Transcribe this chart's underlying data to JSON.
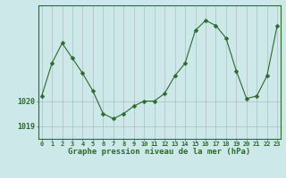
{
  "x": [
    0,
    1,
    2,
    3,
    4,
    5,
    6,
    7,
    8,
    9,
    10,
    11,
    12,
    13,
    14,
    15,
    16,
    17,
    18,
    19,
    20,
    21,
    22,
    23
  ],
  "y": [
    1020.2,
    1021.5,
    1022.3,
    1021.7,
    1021.1,
    1020.4,
    1019.5,
    1019.3,
    1019.5,
    1019.8,
    1020.0,
    1020.0,
    1020.3,
    1021.0,
    1021.5,
    1022.8,
    1023.2,
    1023.0,
    1022.5,
    1021.2,
    1020.1,
    1020.2,
    1021.0,
    1023.0
  ],
  "line_color": "#2d6a2d",
  "marker": "D",
  "marker_size": 2.5,
  "bg_color": "#cce8e8",
  "grid_color_v": "#b0b0c0",
  "grid_color_h": "#b0b0c0",
  "xlabel": "Graphe pression niveau de la mer (hPa)",
  "tick_color": "#2d6a2d",
  "ytick_labels": [
    "1019",
    "1020"
  ],
  "ytick_vals": [
    1019.0,
    1020.0
  ],
  "ylim": [
    1018.5,
    1023.8
  ],
  "xlim": [
    -0.3,
    23.3
  ],
  "xticks": [
    0,
    1,
    2,
    3,
    4,
    5,
    6,
    7,
    8,
    9,
    10,
    11,
    12,
    13,
    14,
    15,
    16,
    17,
    18,
    19,
    20,
    21,
    22,
    23
  ],
  "outer_border_color": "#2d6a2d"
}
